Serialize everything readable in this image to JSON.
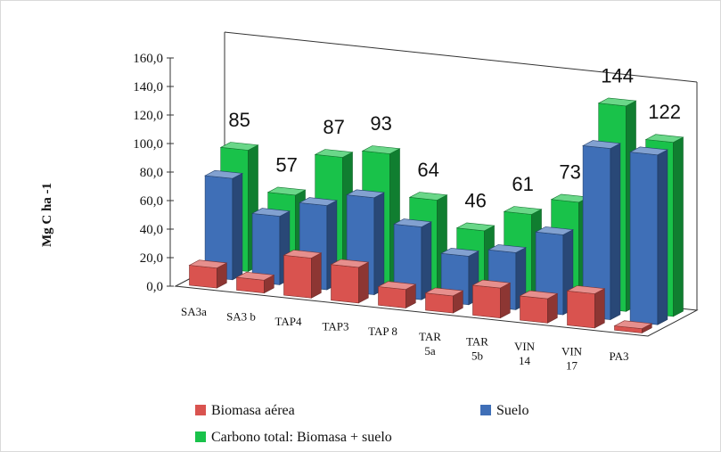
{
  "chart_data": {
    "type": "bar",
    "ylabel": "Mg C ha -1",
    "ylim": [
      0,
      160
    ],
    "yticks": [
      "0,0",
      "20,0",
      "40,0",
      "60,0",
      "80,0",
      "100,0",
      "120,0",
      "140,0",
      "160,0"
    ],
    "categories": [
      [
        "SA3a"
      ],
      [
        "SA3 b"
      ],
      [
        "TAP4"
      ],
      [
        "TAP3"
      ],
      [
        "TAP 8"
      ],
      [
        "TAR",
        "5a"
      ],
      [
        "TAR",
        "5b"
      ],
      [
        "VIN",
        "14"
      ],
      [
        "VIN",
        "17"
      ],
      [
        "PA3"
      ]
    ],
    "series": [
      {
        "name": "Biomasa aérea",
        "color": "#d9534f",
        "values": [
          14,
          9,
          28,
          25,
          13,
          12,
          21,
          17,
          24,
          3
        ]
      },
      {
        "name": "Suelo",
        "color": "#3f6fb7",
        "values": [
          71,
          48,
          59,
          68,
          51,
          34,
          40,
          56,
          120,
          119
        ]
      },
      {
        "name": "Carbono total: Biomasa + suelo",
        "color": "#19c24a",
        "values": [
          85,
          57,
          87,
          93,
          64,
          46,
          61,
          73,
          144,
          122
        ]
      }
    ],
    "data_labels": [
      "85",
      "57",
      "87",
      "93",
      "64",
      "46",
      "61",
      "73",
      "144",
      "122"
    ],
    "legend": "bottom"
  }
}
